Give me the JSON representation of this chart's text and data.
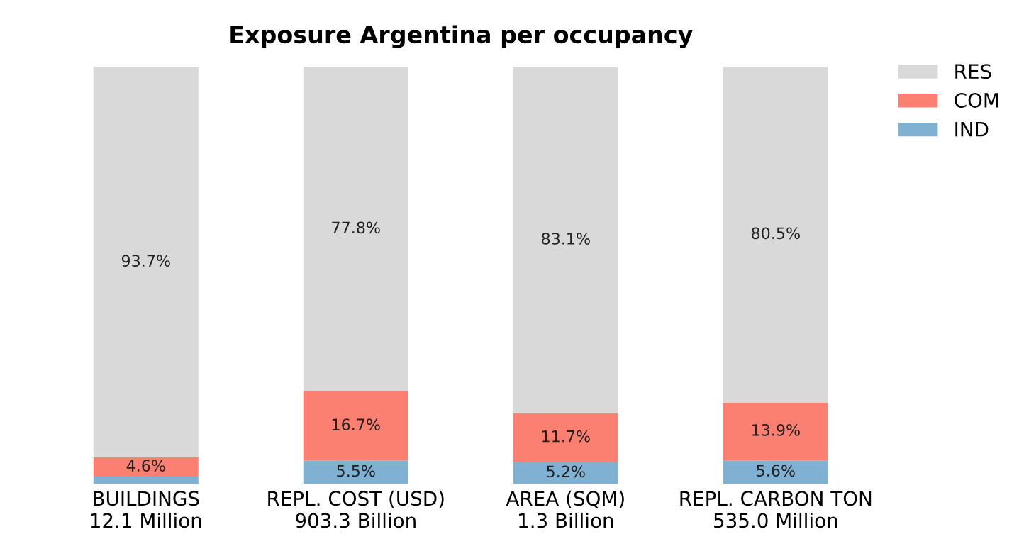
{
  "chart_data": {
    "type": "bar",
    "title": "Exposure Argentina per occupancy",
    "stacked": true,
    "legend": "top right",
    "categories": [
      "BUILDINGS\n12.1 Million",
      "REPL. COST (USD)\n903.3 Billion",
      "AREA (SQM)\n1.3 Billion",
      "REPL. CARBON TON\n535.0 Million"
    ],
    "series": [
      {
        "name": "IND",
        "color": "#80b1d3",
        "values": [
          1.7,
          5.5,
          5.2,
          5.6
        ],
        "value_labels": [
          null,
          "5.5%",
          "5.2%",
          "5.6%"
        ]
      },
      {
        "name": "COM",
        "color": "#fb8072",
        "values": [
          4.6,
          16.7,
          11.7,
          13.9
        ],
        "value_labels": [
          "4.6%",
          "16.7%",
          "11.7%",
          "13.9%"
        ]
      },
      {
        "name": "RES",
        "color": "#d9d9d9",
        "values": [
          93.7,
          77.8,
          83.1,
          80.5
        ],
        "value_labels": [
          "93.7%",
          "77.8%",
          "83.1%",
          "80.5%"
        ]
      }
    ]
  }
}
